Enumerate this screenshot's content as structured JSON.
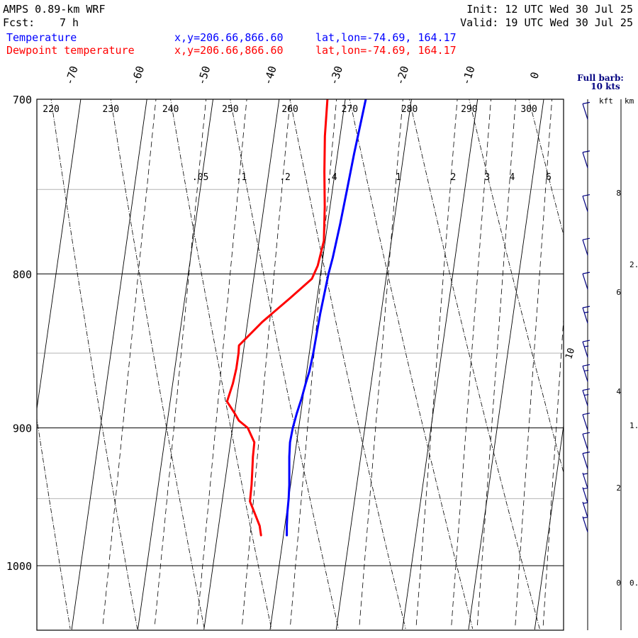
{
  "header": {
    "model": "AMPS 0.89-km WRF",
    "fcst_label": "Fcst:",
    "fcst_value": "7 h",
    "init": "Init: 12 UTC Wed 30 Jul 25",
    "valid": "Valid: 19 UTC Wed 30 Jul 25"
  },
  "legend": [
    {
      "name": "Temperature",
      "xy": "x,y=206.66,866.60",
      "latlon": "lat,lon=-74.69, 164.17",
      "color": "#0000ff"
    },
    {
      "name": "Dewpoint temperature",
      "xy": "x,y=206.66,866.60",
      "latlon": "lat,lon=-74.69, 164.17",
      "color": "#ff0000"
    }
  ],
  "wind_panel": {
    "title": "Full barb:",
    "subtitle": "10 kts",
    "kft_label": "kft",
    "km_label": "km",
    "kft_ticks": [
      "8",
      "6",
      "4",
      "2",
      "0"
    ],
    "km_ticks": [
      "2.",
      "1.",
      "0."
    ],
    "color": "#000080"
  },
  "chart_data": {
    "type": "line",
    "title": "",
    "yaxis": {
      "label": "",
      "scale": "log-pressure",
      "range": [
        1045,
        700
      ],
      "ticks": [
        700,
        800,
        900,
        1000
      ]
    },
    "temperature_labels": [
      "-70",
      "-60",
      "-50",
      "-40",
      "-30",
      "-20",
      "-10",
      "0"
    ],
    "isotherms_c": [
      -70,
      -60,
      -50,
      -40,
      -30,
      -20,
      -10,
      0
    ],
    "dry_adiabat_labels": [
      "220",
      "230",
      "240",
      "250",
      "260",
      "270",
      "280",
      "290",
      "300"
    ],
    "mixing_ratio_labels": [
      ".05",
      ".1",
      ".2",
      ".4",
      "1",
      "2",
      "3",
      "4",
      "6"
    ],
    "wind_profile_label": "10",
    "series": [
      {
        "name": "Temperature",
        "color": "#0000ff",
        "p": [
          977,
          970,
          960,
          950,
          940,
          930,
          920,
          910,
          900,
          890,
          880,
          870,
          862,
          850,
          825,
          800,
          790,
          770,
          750,
          730,
          710,
          700
        ],
        "t_c": [
          -29.5,
          -29.7,
          -29.9,
          -30.0,
          -30.2,
          -30.5,
          -30.8,
          -31.0,
          -30.9,
          -30.6,
          -30.2,
          -29.9,
          -29.6,
          -29.4,
          -29.2,
          -28.8,
          -28.5,
          -28.1,
          -27.8,
          -27.5,
          -27.1,
          -26.9
        ]
      },
      {
        "name": "Dewpoint temperature",
        "color": "#ff0000",
        "p": [
          977,
          970,
          960,
          952,
          940,
          930,
          920,
          910,
          900,
          895,
          890,
          882,
          870,
          860,
          850,
          845,
          830,
          815,
          803,
          795,
          780,
          760,
          740,
          720,
          700
        ],
        "td_c": [
          -33.4,
          -33.8,
          -34.9,
          -35.8,
          -35.9,
          -36.1,
          -36.3,
          -36.4,
          -37.7,
          -39.2,
          -40.0,
          -41.4,
          -40.9,
          -40.7,
          -40.7,
          -40.8,
          -37.8,
          -34.1,
          -31.2,
          -30.6,
          -30.2,
          -30.8,
          -31.6,
          -32.3,
          -32.7
        ]
      }
    ],
    "wind_barbs": [
      {
        "height_kft": 9.6,
        "speed_kts": 10
      },
      {
        "height_kft": 8.6,
        "speed_kts": 10
      },
      {
        "height_kft": 7.7,
        "speed_kts": 10
      },
      {
        "height_kft": 6.8,
        "speed_kts": 10
      },
      {
        "height_kft": 6.1,
        "speed_kts": 10
      },
      {
        "height_kft": 5.4,
        "speed_kts": 15
      },
      {
        "height_kft": 4.7,
        "speed_kts": 15
      },
      {
        "height_kft": 4.2,
        "speed_kts": 15
      },
      {
        "height_kft": 3.7,
        "speed_kts": 15
      },
      {
        "height_kft": 3.2,
        "speed_kts": 10
      },
      {
        "height_kft": 2.8,
        "speed_kts": 10
      },
      {
        "height_kft": 2.4,
        "speed_kts": 10
      },
      {
        "height_kft": 2.0,
        "speed_kts": 5
      },
      {
        "height_kft": 1.7,
        "speed_kts": 5
      },
      {
        "height_kft": 1.4,
        "speed_kts": 5
      },
      {
        "height_kft": 1.1,
        "speed_kts": 5
      }
    ]
  }
}
